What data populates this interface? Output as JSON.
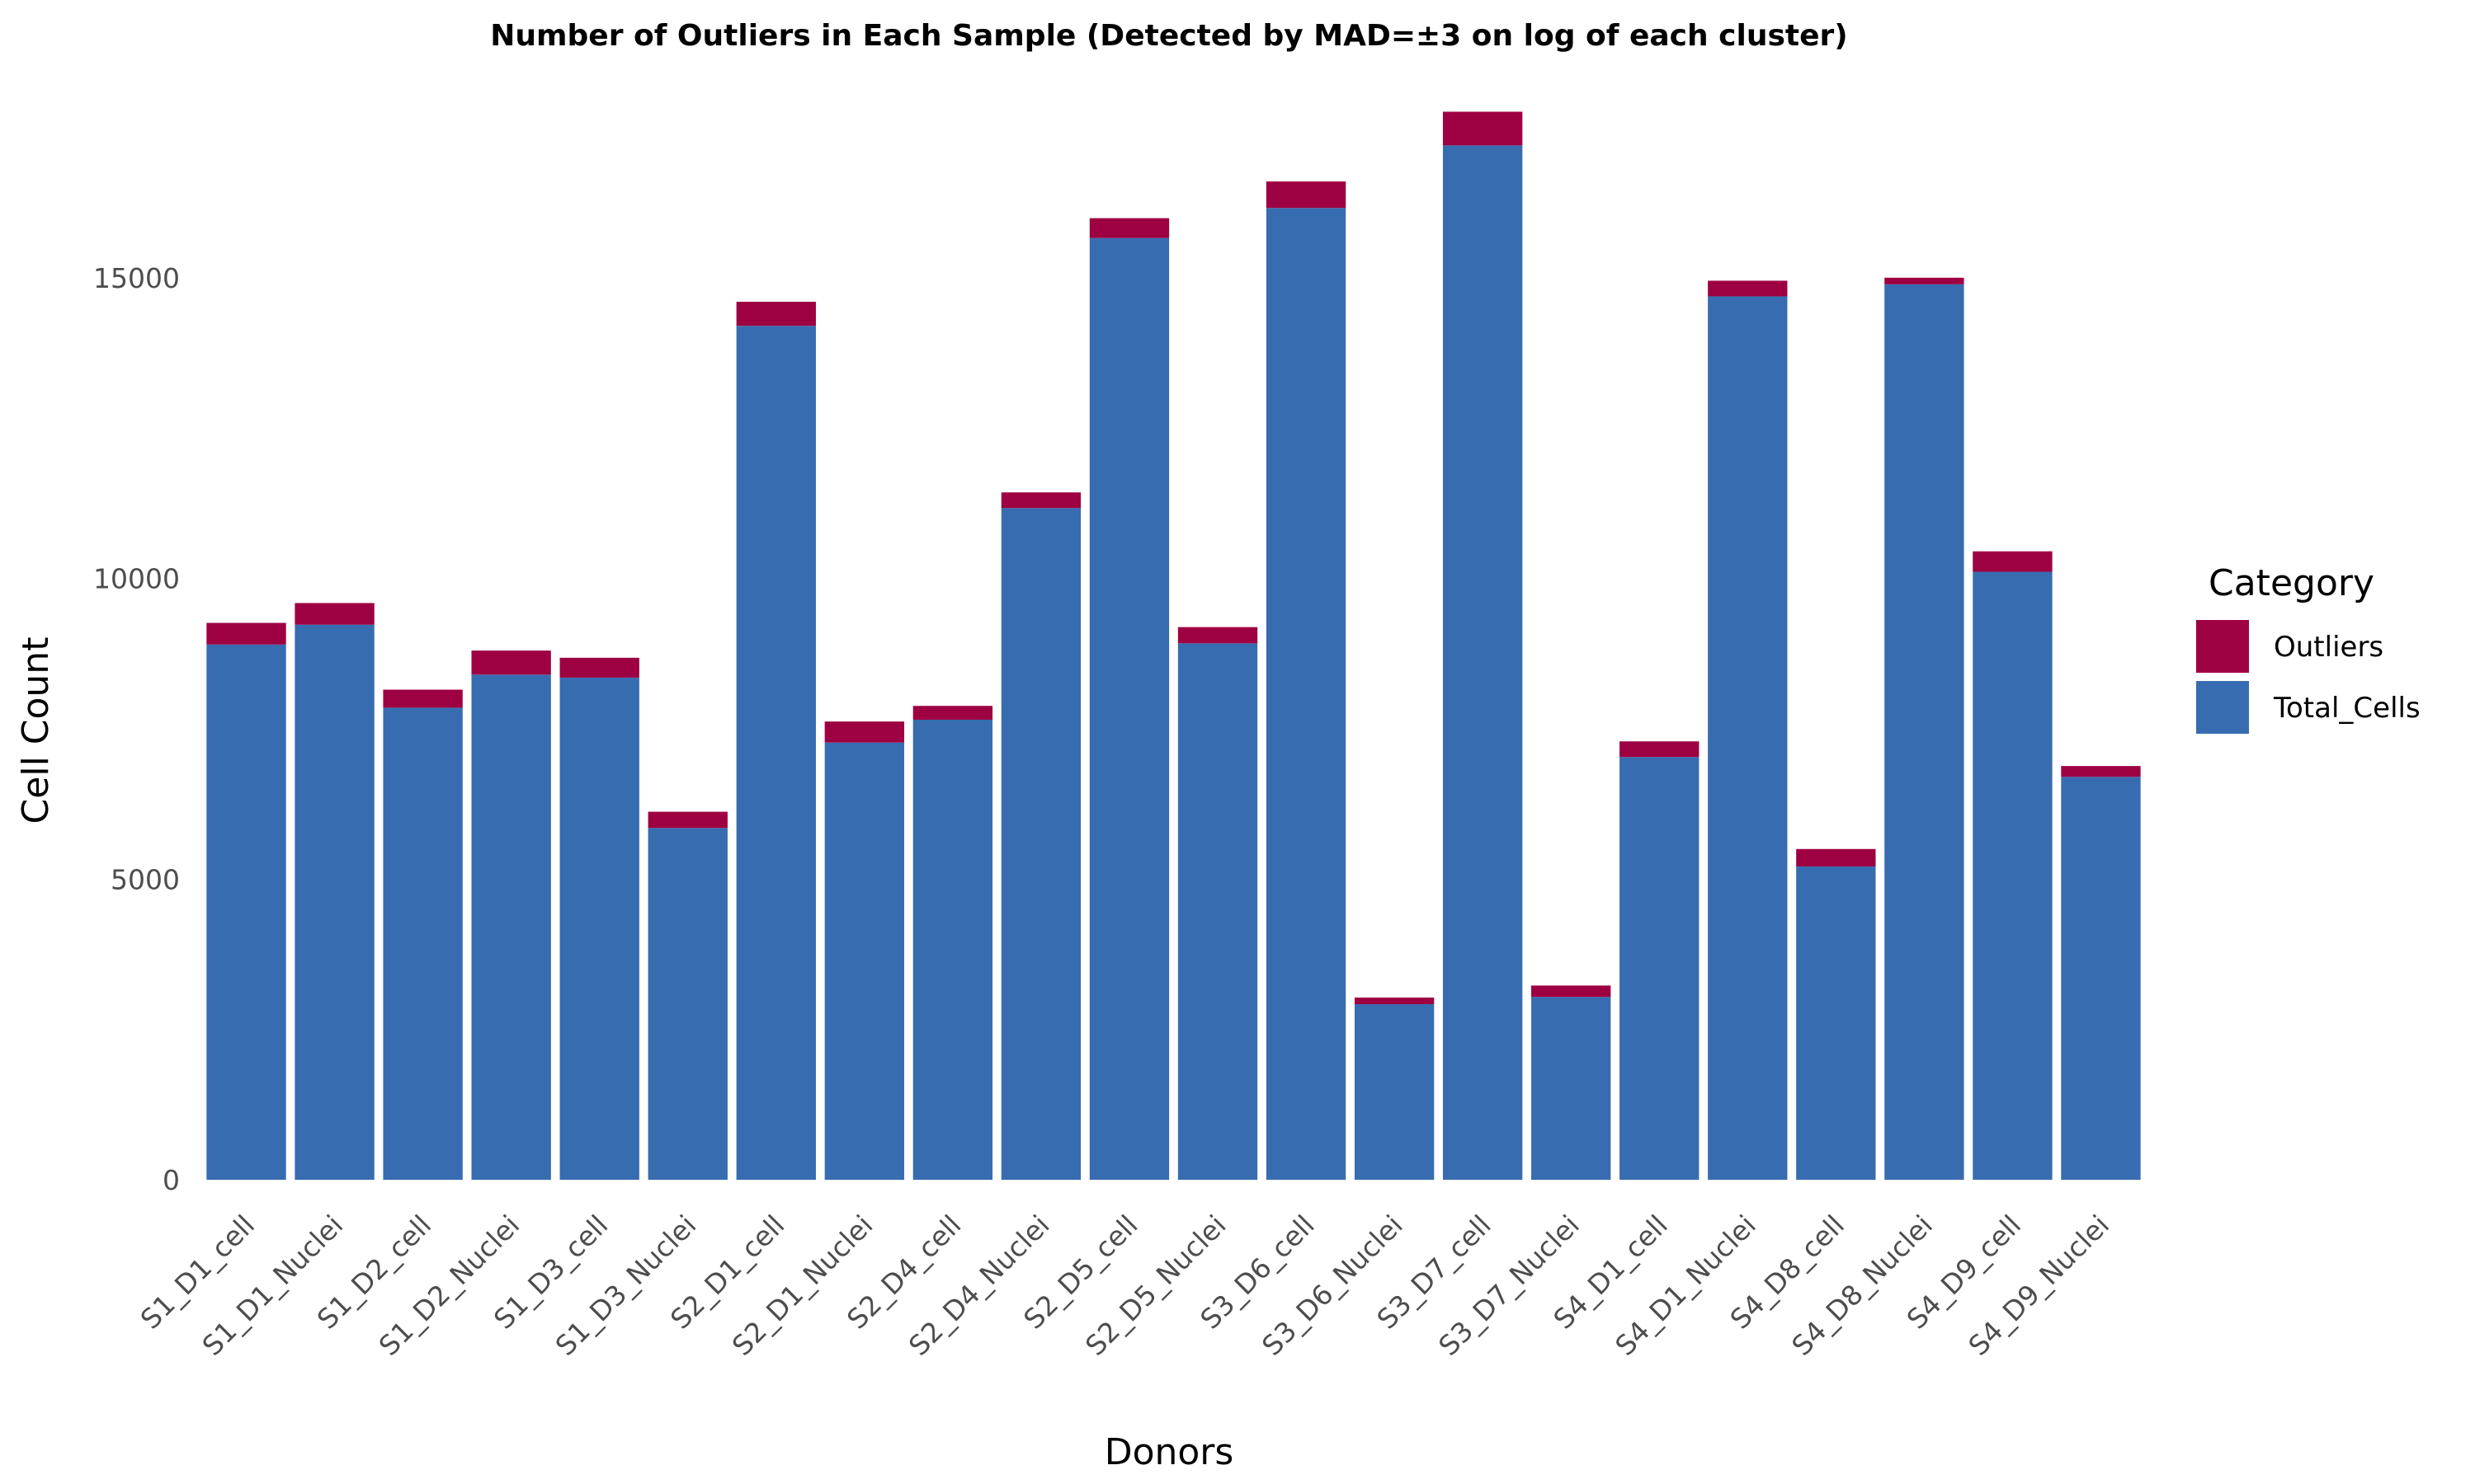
{
  "chart_data": {
    "type": "bar",
    "stacked": true,
    "title": "Number of Outliers in Each Sample (Detected by MAD=±3 on log of each cluster)",
    "xlabel": "Donors",
    "ylabel": "Cell Count",
    "ylim": [
      0,
      18000
    ],
    "yticks": [
      0,
      5000,
      10000,
      15000
    ],
    "grid": false,
    "legend": {
      "title": "Category",
      "position": "right",
      "entries": [
        {
          "name": "Outliers",
          "color": "#9E0142"
        },
        {
          "name": "Total_Cells",
          "color": "#386CB0"
        }
      ]
    },
    "categories": [
      "S1_D1_cell",
      "S1_D1_Nuclei",
      "S1_D2_cell",
      "S1_D2_Nuclei",
      "S1_D3_cell",
      "S1_D3_Nuclei",
      "S2_D1_cell",
      "S2_D1_Nuclei",
      "S2_D4_cell",
      "S2_D4_Nuclei",
      "S2_D5_cell",
      "S2_D5_Nuclei",
      "S3_D6_cell",
      "S3_D6_Nuclei",
      "S3_D7_cell",
      "S3_D7_Nuclei",
      "S4_D1_cell",
      "S4_D1_Nuclei",
      "S4_D8_cell",
      "S4_D8_Nuclei",
      "S4_D9_cell",
      "S4_D9_Nuclei"
    ],
    "series": [
      {
        "name": "Total_Cells",
        "color": "#386CB0",
        "values": [
          8900,
          9230,
          7850,
          8400,
          8350,
          5850,
          14200,
          7270,
          7650,
          11170,
          15660,
          8920,
          16160,
          2920,
          17200,
          3040,
          7030,
          14690,
          5210,
          14890,
          10110,
          6700
        ]
      },
      {
        "name": "Outliers",
        "color": "#9E0142",
        "values": [
          360,
          360,
          300,
          400,
          330,
          270,
          400,
          350,
          230,
          260,
          330,
          270,
          440,
          110,
          560,
          190,
          260,
          260,
          290,
          110,
          340,
          180
        ]
      }
    ]
  }
}
